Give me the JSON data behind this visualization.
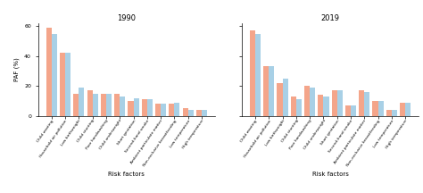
{
  "title_1990": "1990",
  "title_2019": "2019",
  "xlabel": "Risk factors",
  "ylabel": "PAF (%)",
  "categories": [
    "Child wasting",
    "Household air pollution",
    "Low birthweight",
    "Child stunting",
    "Poor handwashing",
    "Child underweight",
    "Short gestation",
    "Second-hand smoke",
    "Ambient particulate matter",
    "Non-exclusive breastfeeding",
    "Low temperature",
    "High temperature"
  ],
  "female_1990": [
    59,
    42,
    15,
    17,
    15,
    15,
    10,
    11,
    8,
    8,
    5,
    4
  ],
  "male_1990": [
    55,
    42,
    19,
    15,
    15,
    13,
    12,
    11,
    8,
    9,
    4,
    4
  ],
  "female_2019": [
    57,
    33,
    22,
    13,
    20,
    14,
    17,
    7,
    17,
    10,
    4,
    9
  ],
  "male_2019": [
    55,
    33,
    25,
    11,
    19,
    13,
    17,
    7,
    16,
    10,
    4,
    9
  ],
  "female_color": "#F4A58A",
  "male_color": "#A8D0E6",
  "ylim": [
    0,
    62
  ],
  "yticks": [
    0,
    20,
    40,
    60
  ]
}
